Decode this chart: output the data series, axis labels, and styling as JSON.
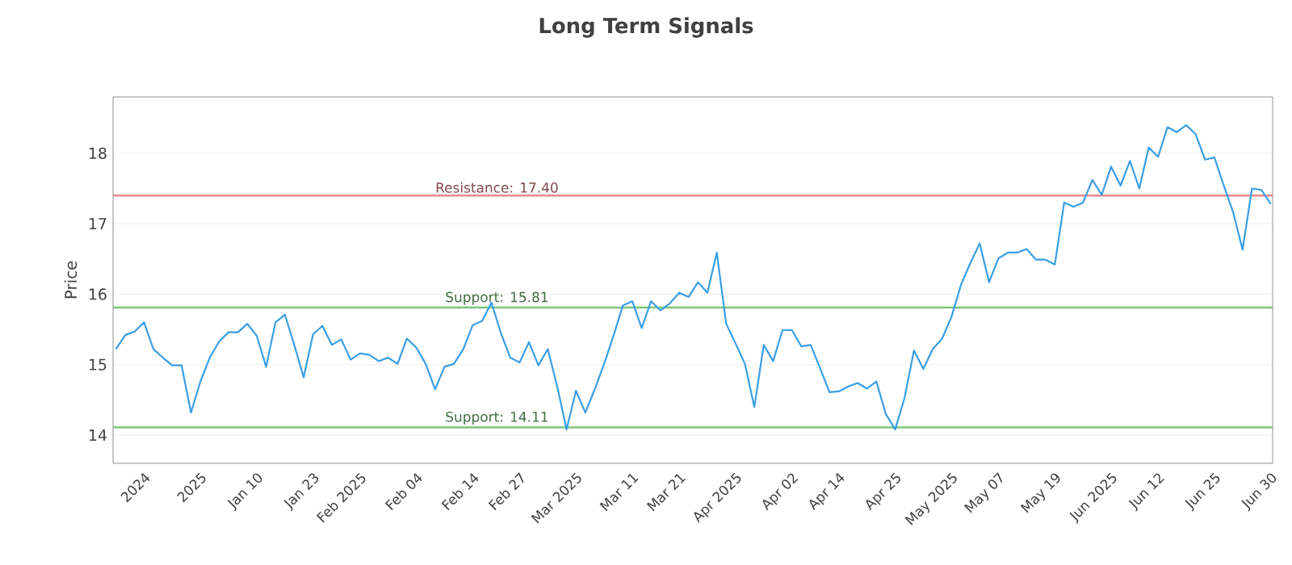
{
  "chart_data": {
    "type": "line",
    "title": "Long Term Signals",
    "ylabel": "Price",
    "categories": [
      null,
      null,
      null,
      "2024",
      null,
      null,
      null,
      null,
      null,
      "2025",
      null,
      null,
      null,
      null,
      null,
      "Jan 10",
      null,
      null,
      null,
      null,
      null,
      "Jan 23",
      null,
      null,
      null,
      null,
      "Feb 2025",
      null,
      null,
      null,
      null,
      null,
      "Feb 04",
      null,
      null,
      null,
      null,
      null,
      "Feb 14",
      null,
      null,
      null,
      null,
      "Feb 27",
      null,
      null,
      null,
      null,
      null,
      "Mar 2025",
      null,
      null,
      null,
      null,
      null,
      "Mar 11",
      null,
      null,
      null,
      null,
      "Mar 21",
      null,
      null,
      null,
      null,
      null,
      "Apr 2025",
      null,
      null,
      null,
      null,
      null,
      "Apr 02",
      null,
      null,
      null,
      null,
      "Apr 14",
      null,
      null,
      null,
      null,
      null,
      "Apr 25",
      null,
      null,
      null,
      null,
      null,
      "May 2025",
      null,
      null,
      null,
      null,
      "May 07",
      null,
      null,
      null,
      null,
      null,
      "May 19",
      null,
      null,
      null,
      null,
      null,
      "Jun 2025",
      null,
      null,
      null,
      null,
      "Jun 12",
      null,
      null,
      null,
      null,
      null,
      "Jun 25",
      null,
      null,
      null,
      null,
      null,
      "Jun 30"
    ],
    "series": [
      {
        "color": "#3a9ee4",
        "values": [
          15.22,
          15.42,
          15.47,
          15.6,
          15.22,
          15.1,
          14.99,
          14.99,
          14.32,
          14.76,
          15.1,
          15.33,
          15.46,
          15.46,
          15.58,
          15.41,
          14.97,
          15.6,
          15.71,
          15.28,
          14.82,
          15.43,
          15.55,
          15.28,
          15.36,
          15.07,
          15.16,
          15.14,
          15.05,
          15.1,
          15.01,
          15.37,
          15.24,
          15.01,
          14.65,
          14.97,
          15.01,
          15.22,
          15.56,
          15.62,
          15.88,
          15.45,
          15.1,
          15.03,
          15.32,
          14.99,
          15.22,
          14.69,
          14.08,
          14.63,
          14.32,
          14.65,
          15.01,
          15.41,
          15.84,
          15.9,
          15.52,
          15.9,
          15.77,
          15.87,
          16.02,
          15.96,
          16.17,
          16.02,
          16.59,
          15.58,
          15.3,
          15.01,
          14.4,
          15.28,
          15.05,
          15.49,
          15.49,
          15.26,
          15.28,
          14.95,
          14.61,
          14.62,
          14.69,
          14.74,
          14.66,
          14.76,
          14.3,
          14.08,
          14.53,
          15.2,
          14.94,
          15.22,
          15.37,
          15.68,
          16.13,
          16.44,
          16.72,
          16.17,
          16.51,
          16.59,
          16.59,
          16.64,
          16.49,
          16.49,
          16.42,
          17.3,
          17.24,
          17.3,
          17.62,
          17.41,
          17.81,
          17.54,
          17.89,
          17.5,
          18.08,
          17.95,
          18.37,
          18.3,
          18.4,
          18.27,
          17.91,
          17.94,
          17.54,
          17.16,
          16.63,
          17.5,
          17.48,
          17.28
        ]
      }
    ],
    "ylim": [
      13.6,
      18.8
    ],
    "yticks": [
      14,
      15,
      16,
      17,
      18
    ],
    "grid": "y",
    "ref_lines": [
      {
        "axis": "y",
        "value": 17.4,
        "label": "Resistance: 17.40",
        "color": "#e88a8a"
      },
      {
        "axis": "y",
        "value": 15.81,
        "label": "Support: 15.81",
        "color": "#7cc47c"
      },
      {
        "axis": "y",
        "value": 14.11,
        "label": "Support: 14.11",
        "color": "#7cc47c"
      }
    ]
  }
}
